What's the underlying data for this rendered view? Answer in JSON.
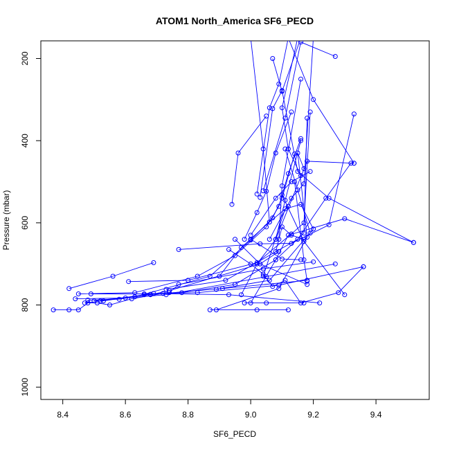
{
  "chart_data": {
    "type": "line",
    "title": "ATOM1 North_America SF6_PECD",
    "xlabel": "SF6_PECD",
    "ylabel": "Pressure (mbar)",
    "xlim": [
      8.33,
      9.57
    ],
    "ylim": [
      1030,
      157
    ],
    "y_reversed": true,
    "grid": false,
    "legend": "none",
    "x_ticks": [
      8.4,
      8.6,
      8.8,
      9.0,
      9.2,
      9.4
    ],
    "x_tick_labels": [
      "8.4",
      "8.6",
      "8.8",
      "9.0",
      "9.2",
      "9.4"
    ],
    "y_ticks": [
      200,
      400,
      600,
      800,
      1000
    ],
    "y_tick_labels": [
      "200",
      "400",
      "600",
      "800",
      "1000"
    ],
    "series_color": "#0000ff",
    "series": [
      {
        "points": [
          [
            8.37,
            812
          ],
          [
            8.42,
            812
          ],
          [
            8.45,
            812
          ],
          [
            8.48,
            795
          ],
          [
            8.51,
            795
          ],
          [
            8.55,
            800
          ],
          [
            8.62,
            785
          ],
          [
            8.72,
            772
          ],
          [
            8.91,
            760
          ],
          [
            9.18,
            740
          ]
        ]
      },
      {
        "points": [
          [
            8.42,
            760
          ],
          [
            8.56,
            730
          ],
          [
            8.69,
            697
          ]
        ]
      },
      {
        "points": [
          [
            8.44,
            785
          ],
          [
            8.6,
            783
          ],
          [
            8.73,
            775
          ],
          [
            9.05,
            731
          ],
          [
            9.27,
            700
          ]
        ]
      },
      {
        "points": [
          [
            8.45,
            773
          ],
          [
            8.63,
            770
          ],
          [
            8.83,
            730
          ],
          [
            8.95,
            680
          ],
          [
            9.05,
            610
          ],
          [
            9.09,
            560
          ],
          [
            9.12,
            480
          ],
          [
            9.16,
            395
          ]
        ]
      },
      {
        "points": [
          [
            8.47,
            795
          ],
          [
            8.53,
            790
          ],
          [
            8.68,
            774
          ],
          [
            8.74,
            770
          ],
          [
            8.77,
            750
          ],
          [
            9.04,
            712
          ],
          [
            9.2,
            695
          ]
        ]
      },
      {
        "points": [
          [
            8.48,
            788
          ],
          [
            8.58,
            786
          ],
          [
            8.63,
            780
          ],
          [
            8.87,
            730
          ],
          [
            9.0,
            642
          ],
          [
            9.07,
            588
          ],
          [
            9.1,
            540
          ],
          [
            9.14,
            432
          ]
        ]
      },
      {
        "points": [
          [
            8.49,
            773
          ],
          [
            8.66,
            773
          ],
          [
            8.83,
            770
          ],
          [
            9.09,
            752
          ],
          [
            9.36,
            707
          ]
        ]
      },
      {
        "points": [
          [
            8.5,
            790
          ],
          [
            8.68,
            775
          ],
          [
            8.74,
            765
          ],
          [
            9.03,
            700
          ],
          [
            9.09,
            670
          ]
        ]
      },
      {
        "points": [
          [
            8.52,
            790
          ],
          [
            8.69,
            772
          ],
          [
            8.93,
            775
          ],
          [
            9.22,
            795
          ]
        ]
      },
      {
        "points": [
          [
            8.61,
            743
          ],
          [
            8.8,
            740
          ],
          [
            9.02,
            697
          ],
          [
            9.13,
            627
          ],
          [
            9.17,
            600
          ],
          [
            9.19,
            330
          ]
        ]
      },
      {
        "points": [
          [
            8.66,
            775
          ],
          [
            8.78,
            770
          ],
          [
            8.95,
            750
          ],
          [
            9.08,
            690
          ],
          [
            9.12,
            630
          ],
          [
            9.3,
            590
          ],
          [
            9.52,
            648
          ]
        ]
      },
      {
        "points": [
          [
            8.77,
            665
          ],
          [
            9.03,
            651
          ],
          [
            9.13,
            650
          ],
          [
            9.25,
            605
          ],
          [
            9.33,
            335
          ]
        ]
      },
      {
        "points": [
          [
            8.73,
            762
          ],
          [
            8.92,
            740
          ],
          [
            9.15,
            640
          ],
          [
            9.24,
            540
          ],
          [
            9.32,
            455
          ]
        ]
      },
      {
        "points": [
          [
            8.87,
            812
          ],
          [
            9.02,
            812
          ],
          [
            9.12,
            812
          ]
        ]
      },
      {
        "points": [
          [
            8.89,
            812
          ],
          [
            9.09,
            760
          ],
          [
            9.18,
            635
          ],
          [
            9.15,
            430
          ],
          [
            9.17,
            468
          ]
        ]
      },
      {
        "points": [
          [
            8.89,
            762
          ],
          [
            9.06,
            740
          ],
          [
            9.2,
            615
          ]
        ]
      },
      {
        "points": [
          [
            8.93,
            665
          ],
          [
            9.0,
            700
          ],
          [
            9.04,
            725
          ],
          [
            9.07,
            755
          ],
          [
            9.11,
            740
          ],
          [
            9.16,
            795
          ],
          [
            9.28,
            770
          ],
          [
            9.36,
            707
          ]
        ]
      },
      {
        "points": [
          [
            8.94,
            555
          ],
          [
            8.96,
            430
          ],
          [
            9.05,
            340
          ]
        ]
      },
      {
        "points": [
          [
            8.97,
            775
          ],
          [
            9.02,
            700
          ],
          [
            9.08,
            640
          ],
          [
            9.11,
            545
          ],
          [
            9.16,
            400
          ]
        ]
      },
      {
        "points": [
          [
            8.98,
            640
          ],
          [
            9.02,
            575
          ],
          [
            9.05,
            523
          ],
          [
            9.08,
            430
          ],
          [
            9.13,
            330
          ]
        ]
      },
      {
        "points": [
          [
            9.0,
            795
          ],
          [
            9.08,
            690
          ],
          [
            9.17,
            625
          ],
          [
            9.18,
            345
          ]
        ]
      },
      {
        "points": [
          [
            9.02,
            530
          ],
          [
            9.06,
            320
          ],
          [
            9.09,
            262
          ],
          [
            9.12,
            150
          ]
        ]
      },
      {
        "points": [
          [
            9.04,
            522
          ],
          [
            9.11,
            345
          ],
          [
            9.16,
            160
          ],
          [
            9.27,
            195
          ]
        ]
      },
      {
        "points": [
          [
            9.07,
            200
          ],
          [
            9.1,
            280
          ],
          [
            9.16,
            150
          ]
        ]
      },
      {
        "points": [
          [
            9.03,
            538
          ],
          [
            9.07,
            322
          ],
          [
            9.1,
            278
          ],
          [
            9.15,
            475
          ],
          [
            9.25,
            540
          ],
          [
            9.52,
            648
          ]
        ]
      },
      {
        "points": [
          [
            9.06,
            640
          ],
          [
            9.13,
            540
          ],
          [
            9.17,
            505
          ],
          [
            9.2,
            150
          ]
        ]
      },
      {
        "points": [
          [
            9.1,
            532
          ],
          [
            9.17,
            645
          ],
          [
            9.3,
            775
          ]
        ]
      },
      {
        "points": [
          [
            9.08,
            640
          ],
          [
            9.18,
            450
          ],
          [
            9.33,
            455
          ]
        ]
      },
      {
        "points": [
          [
            9.11,
            420
          ],
          [
            9.15,
            520
          ],
          [
            9.19,
            625
          ]
        ]
      },
      {
        "points": [
          [
            9.14,
            500
          ],
          [
            9.17,
            690
          ],
          [
            9.18,
            742
          ]
        ]
      },
      {
        "points": [
          [
            9.04,
            730
          ],
          [
            9.11,
            566
          ],
          [
            9.16,
            555
          ],
          [
            9.2,
            615
          ]
        ]
      },
      {
        "points": [
          [
            8.95,
            640
          ],
          [
            9.03,
            700
          ],
          [
            9.18,
            750
          ]
        ]
      },
      {
        "points": [
          [
            9.0,
            640
          ],
          [
            9.1,
            688
          ],
          [
            9.16,
            690
          ]
        ]
      },
      {
        "points": [
          [
            8.98,
            795
          ],
          [
            9.05,
            795
          ],
          [
            9.17,
            795
          ]
        ]
      },
      {
        "points": [
          [
            8.9,
            730
          ],
          [
            8.97,
            660
          ],
          [
            9.06,
            598
          ],
          [
            9.12,
            560
          ]
        ]
      },
      {
        "points": [
          [
            9.12,
            150
          ],
          [
            9.2,
            300
          ],
          [
            9.33,
            455
          ]
        ]
      },
      {
        "points": [
          [
            9.0,
            150
          ],
          [
            9.04,
            420
          ],
          [
            9.06,
            598
          ]
        ]
      },
      {
        "points": [
          [
            9.15,
            150
          ],
          [
            9.1,
            320
          ],
          [
            9.12,
            420
          ],
          [
            9.16,
            485
          ]
        ]
      },
      {
        "points": [
          [
            9.08,
            670
          ],
          [
            9.1,
            610
          ],
          [
            9.13,
            630
          ],
          [
            9.17,
            640
          ]
        ]
      },
      {
        "points": [
          [
            9.16,
            250
          ],
          [
            9.1,
            510
          ],
          [
            9.09,
            640
          ]
        ]
      },
      {
        "points": [
          [
            9.0,
            630
          ],
          [
            9.08,
            540
          ],
          [
            9.13,
            500
          ],
          [
            9.19,
            475
          ]
        ]
      }
    ]
  }
}
